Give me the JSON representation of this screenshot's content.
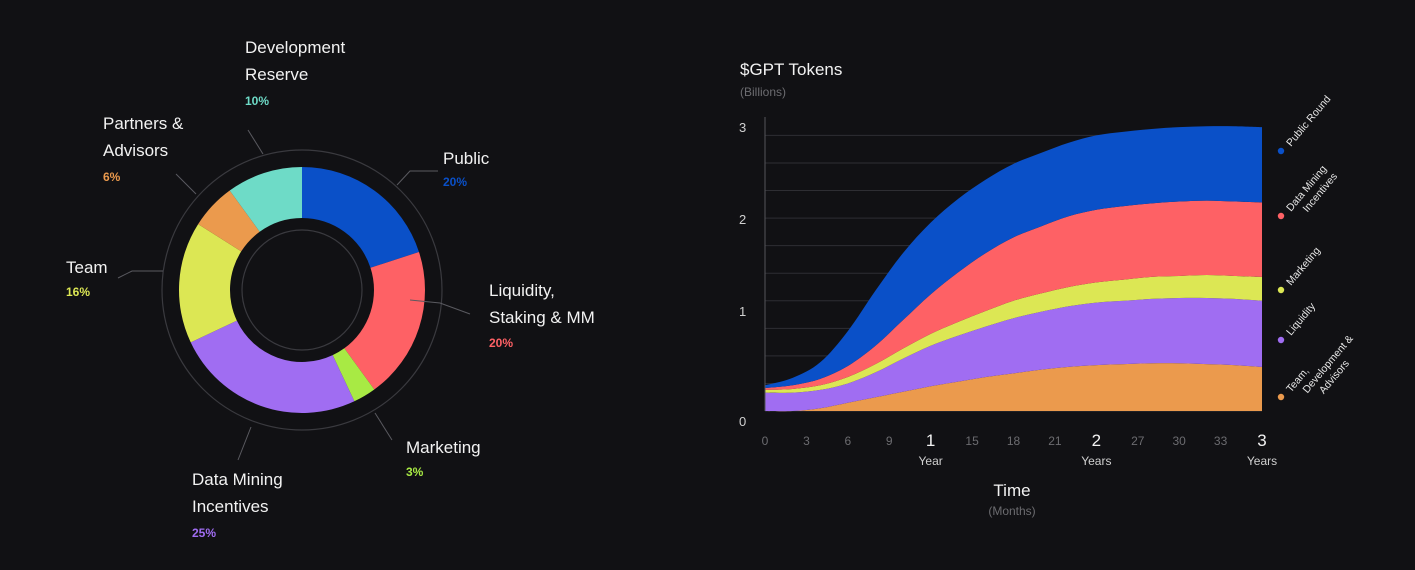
{
  "chart_data": [
    {
      "type": "pie",
      "slices": [
        {
          "name_lines": [
            "Public"
          ],
          "percent_label": "20%",
          "value": 20,
          "color": "#0a50c8"
        },
        {
          "name_lines": [
            "Liquidity,",
            "Staking & MM"
          ],
          "percent_label": "20%",
          "value": 20,
          "color": "#fe6165"
        },
        {
          "name_lines": [
            "Marketing"
          ],
          "percent_label": "3%",
          "value": 3,
          "color": "#a8ea44"
        },
        {
          "name_lines": [
            "Data Mining",
            "Incentives"
          ],
          "percent_label": "25%",
          "value": 25,
          "color": "#a06df2"
        },
        {
          "name_lines": [
            "Team"
          ],
          "percent_label": "16%",
          "value": 16,
          "color": "#dce754"
        },
        {
          "name_lines": [
            "Partners &",
            "Advisors"
          ],
          "percent_label": "6%",
          "value": 6,
          "color": "#eb9a4d"
        },
        {
          "name_lines": [
            "Development",
            "Reserve"
          ],
          "percent_label": "10%",
          "value": 10,
          "color": "#6edbc7"
        }
      ]
    },
    {
      "type": "area",
      "title": "$GPT Tokens",
      "subtitle": "(Billions)",
      "ylim": [
        0,
        3.2
      ],
      "yticks": [
        "0",
        "1",
        "2",
        "3"
      ],
      "xlim": [
        0,
        36
      ],
      "xticks_minor": [
        {
          "x": 0,
          "label": "0"
        },
        {
          "x": 3,
          "label": "3"
        },
        {
          "x": 6,
          "label": "6"
        },
        {
          "x": 9,
          "label": "9"
        },
        {
          "x": 15,
          "label": "15"
        },
        {
          "x": 18,
          "label": "18"
        },
        {
          "x": 21,
          "label": "21"
        },
        {
          "x": 27,
          "label": "27"
        },
        {
          "x": 30,
          "label": "30"
        },
        {
          "x": 33,
          "label": "33"
        }
      ],
      "xticks_major": [
        {
          "x": 12,
          "label": "1",
          "unit": "Year"
        },
        {
          "x": 24,
          "label": "2",
          "unit": "Years"
        },
        {
          "x": 36,
          "label": "3",
          "unit": "Years"
        }
      ],
      "xlabel": "Time",
      "xlabel_sub": "(Months)",
      "grid": true,
      "x": [
        0,
        2,
        4,
        6,
        8,
        10,
        12,
        14,
        16,
        18,
        20,
        22,
        24,
        26,
        28,
        30,
        32,
        34,
        36
      ],
      "series": [
        {
          "name": "Team, Development & Advisors",
          "color": "#eb9a4d",
          "values": [
            0,
            0,
            0.03,
            0.09,
            0.15,
            0.21,
            0.27,
            0.32,
            0.37,
            0.41,
            0.45,
            0.48,
            0.5,
            0.51,
            0.52,
            0.52,
            0.51,
            0.5,
            0.48
          ]
        },
        {
          "name": "Liquidity",
          "color": "#a06df2",
          "values": [
            0.2,
            0.2,
            0.2,
            0.21,
            0.27,
            0.36,
            0.44,
            0.5,
            0.55,
            0.6,
            0.63,
            0.66,
            0.68,
            0.69,
            0.7,
            0.71,
            0.72,
            0.72,
            0.72
          ]
        },
        {
          "name": "Marketing",
          "color": "#dce754",
          "values": [
            0.03,
            0.04,
            0.05,
            0.07,
            0.09,
            0.11,
            0.13,
            0.15,
            0.17,
            0.19,
            0.2,
            0.21,
            0.22,
            0.23,
            0.24,
            0.24,
            0.25,
            0.25,
            0.26
          ]
        },
        {
          "name": "Data Mining Incentives",
          "color": "#fe6165",
          "values": [
            0.02,
            0.04,
            0.07,
            0.12,
            0.2,
            0.31,
            0.43,
            0.54,
            0.63,
            0.69,
            0.73,
            0.77,
            0.79,
            0.8,
            0.8,
            0.81,
            0.81,
            0.81,
            0.81
          ]
        },
        {
          "name": "Public Round",
          "color": "#0a50c8",
          "values": [
            0.03,
            0.08,
            0.18,
            0.38,
            0.6,
            0.73,
            0.78,
            0.8,
            0.8,
            0.8,
            0.8,
            0.8,
            0.81,
            0.81,
            0.81,
            0.81,
            0.81,
            0.82,
            0.82
          ]
        }
      ],
      "legend": [
        {
          "label": "Public Round",
          "color": "#0a50c8"
        },
        {
          "label": "Data Mining Incentives",
          "color": "#fe6165"
        },
        {
          "label": "Marketing",
          "color": "#dce754"
        },
        {
          "label": "Liquidity",
          "color": "#a06df2"
        },
        {
          "label": "Team, Development & Advisors",
          "color": "#eb9a4d"
        }
      ]
    }
  ]
}
